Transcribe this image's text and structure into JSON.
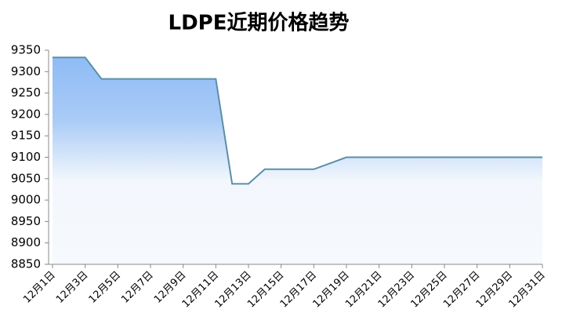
{
  "chart_data": {
    "type": "area",
    "title": "LDPE近期价格趋势",
    "categories": [
      "12月1日",
      null,
      "12月3日",
      null,
      "12月5日",
      null,
      "12月7日",
      null,
      "12月9日",
      null,
      "12月11日",
      null,
      "12月13日",
      null,
      "12月15日",
      null,
      "12月17日",
      null,
      "12月19日",
      null,
      "12月21日",
      null,
      "12月23日",
      null,
      "12月25日",
      null,
      "12月27日",
      null,
      "12月29日",
      null,
      "12月31日"
    ],
    "values": [
      9333,
      9333,
      9333,
      9283,
      9283,
      9283,
      9283,
      9283,
      9283,
      9283,
      9283,
      9038,
      9038,
      9072,
      9072,
      9072,
      9072,
      9086,
      9100,
      9100,
      9100,
      9100,
      9100,
      9100,
      9100,
      9100,
      9100,
      9100,
      9100,
      9100,
      9100
    ],
    "color": "#5b8fa8",
    "fill_top": "#8fbcf5",
    "ylim": [
      8850,
      9350
    ],
    "yticks": [
      8850,
      8900,
      8950,
      9000,
      9050,
      9100,
      9150,
      9200,
      9250,
      9300,
      9350
    ],
    "grid": false
  }
}
